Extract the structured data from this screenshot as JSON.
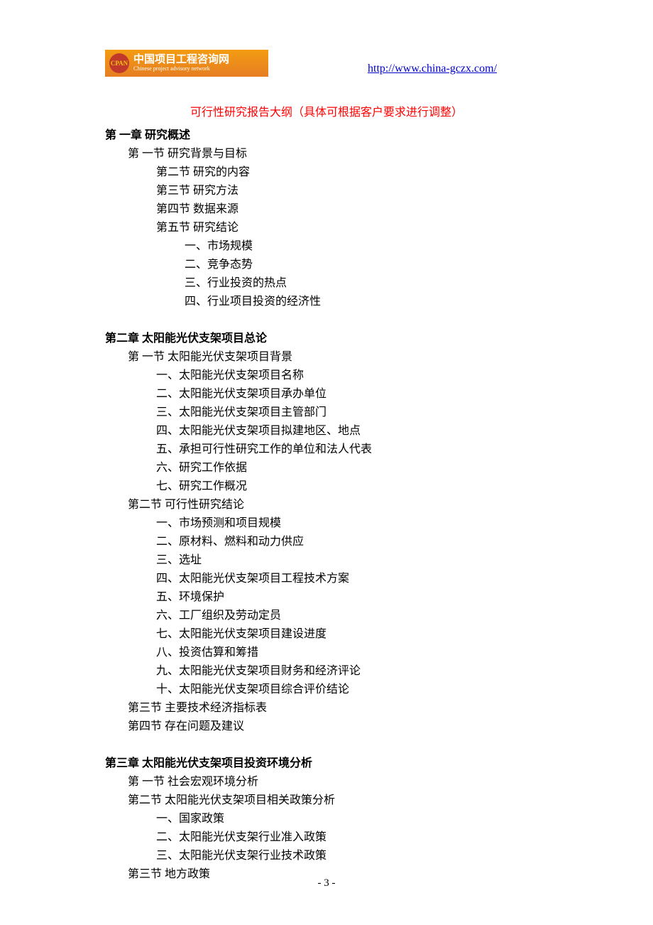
{
  "banner": {
    "logo_text": "CPAN",
    "title": "中国项目工程咨询网",
    "subtitle": "Chinese project advisory network",
    "bg_gradient_start": "#f39c12",
    "bg_gradient_end": "#e67e22",
    "logo_bg": "#c0392b"
  },
  "header_url": "http://www.china-gczx.com/",
  "red_title": "可行性研究报告大纲（具体可根据客户要求进行调整）",
  "chapters": [
    {
      "title": "第 一章   研究概述",
      "sections": [
        {
          "type": "section",
          "text": "第 一节  研究背景与目标"
        },
        {
          "type": "subsection",
          "text": "第二节  研究的内容"
        },
        {
          "type": "subsection",
          "text": "第三节  研究方法"
        },
        {
          "type": "subsection",
          "text": "第四节  数据来源"
        },
        {
          "type": "subsection",
          "text": "第五节  研究结论"
        },
        {
          "type": "item-deep",
          "text": "一、市场规模"
        },
        {
          "type": "item-deep",
          "text": "二、竞争态势"
        },
        {
          "type": "item-deep",
          "text": "三、行业投资的热点"
        },
        {
          "type": "item-deep",
          "text": "四、行业项目投资的经济性"
        }
      ]
    },
    {
      "title": "第二章  太阳能光伏支架项目总论",
      "sections": [
        {
          "type": "section",
          "text": "第 一节  太阳能光伏支架项目背景"
        },
        {
          "type": "item",
          "text": "一、太阳能光伏支架项目名称"
        },
        {
          "type": "item",
          "text": "二、太阳能光伏支架项目承办单位"
        },
        {
          "type": "item",
          "text": "三、太阳能光伏支架项目主管部门"
        },
        {
          "type": "item",
          "text": "四、太阳能光伏支架项目拟建地区、地点"
        },
        {
          "type": "item",
          "text": "五、承担可行性研究工作的单位和法人代表"
        },
        {
          "type": "item",
          "text": "六、研究工作依据"
        },
        {
          "type": "item",
          "text": "七、研究工作概况"
        },
        {
          "type": "section",
          "text": "第二节   可行性研究结论"
        },
        {
          "type": "item",
          "text": "一、市场预测和项目规模"
        },
        {
          "type": "item",
          "text": "二、原材料、燃料和动力供应"
        },
        {
          "type": "item",
          "text": "三、选址"
        },
        {
          "type": "item",
          "text": "四、太阳能光伏支架项目工程技术方案"
        },
        {
          "type": "item",
          "text": "五、环境保护"
        },
        {
          "type": "item",
          "text": "六、工厂组织及劳动定员"
        },
        {
          "type": "item",
          "text": "七、太阳能光伏支架项目建设进度"
        },
        {
          "type": "item",
          "text": "八、投资估算和筹措"
        },
        {
          "type": "item",
          "text": "九、太阳能光伏支架项目财务和经济评论"
        },
        {
          "type": "item",
          "text": "十、太阳能光伏支架项目综合评价结论"
        },
        {
          "type": "section",
          "text": "第三节   主要技术经济指标表"
        },
        {
          "type": "section",
          "text": "第四节   存在问题及建议"
        }
      ]
    },
    {
      "title": "第三章  太阳能光伏支架项目投资环境分析",
      "sections": [
        {
          "type": "section",
          "text": "第 一节   社会宏观环境分析"
        },
        {
          "type": "section",
          "text": "第二节  太阳能光伏支架项目相关政策分析"
        },
        {
          "type": "item",
          "text": "一、国家政策"
        },
        {
          "type": "item",
          "text": "二、太阳能光伏支架行业准入政策"
        },
        {
          "type": "item",
          "text": "三、太阳能光伏支架行业技术政策"
        },
        {
          "type": "section",
          "text": "第三节   地方政策"
        }
      ]
    }
  ],
  "page_number": "- 3 -",
  "colors": {
    "text": "#000000",
    "red": "#ff0000",
    "link": "#0000cc",
    "background": "#ffffff"
  },
  "typography": {
    "body_fontsize": 16,
    "line_height": 26,
    "font_family": "SimSun"
  }
}
